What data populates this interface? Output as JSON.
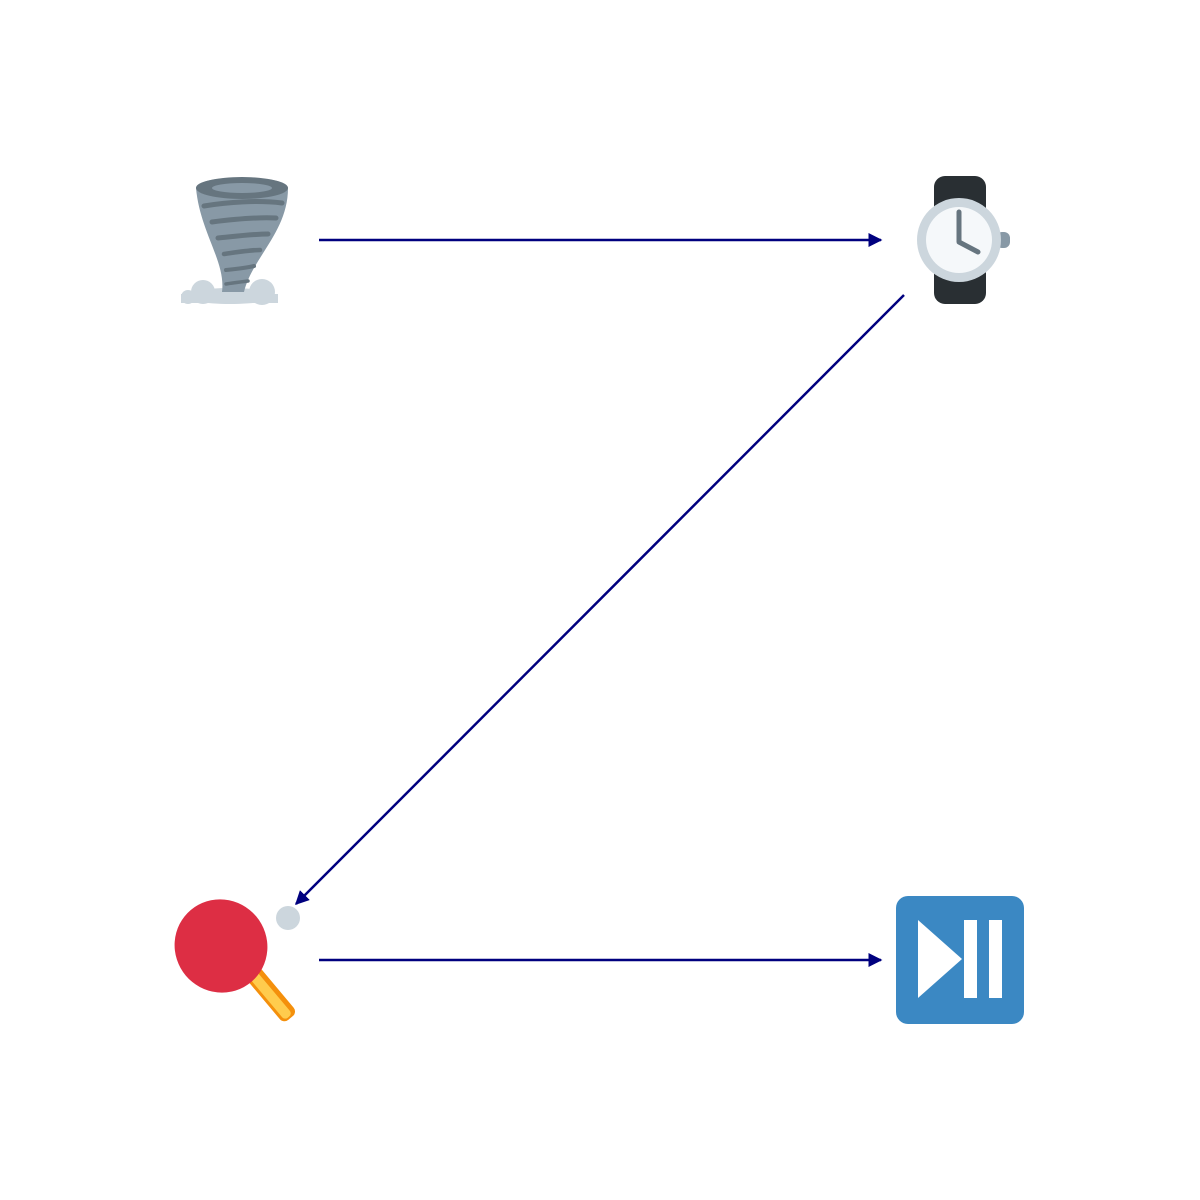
{
  "diagram": {
    "nodes": [
      {
        "id": "tornado",
        "icon": "tornado-icon"
      },
      {
        "id": "watch",
        "icon": "watch-icon"
      },
      {
        "id": "ping-pong",
        "icon": "ping-pong-paddle-icon"
      },
      {
        "id": "play-pause",
        "icon": "play-pause-button-icon"
      }
    ],
    "edges": [
      {
        "from": "tornado",
        "to": "watch"
      },
      {
        "from": "watch",
        "to": "ping-pong"
      },
      {
        "from": "ping-pong",
        "to": "play-pause"
      }
    ]
  },
  "colors": {
    "arrow": "#00007f",
    "tornado_dark": "#66757f",
    "tornado_mid": "#8899a6",
    "cloud": "#ccd6dd",
    "watch_band": "#292f33",
    "watch_bezel": "#ccd6dd",
    "watch_face": "#f5f8fa",
    "watch_hands": "#66757f",
    "paddle_red": "#dd2e44",
    "paddle_handle": "#ffcc4d",
    "paddle_handle_edge": "#f4900c",
    "paddle_neck": "#d99e82",
    "ball": "#ccd6dd",
    "button_blue": "#3b88c3",
    "button_glyph": "#ffffff"
  }
}
